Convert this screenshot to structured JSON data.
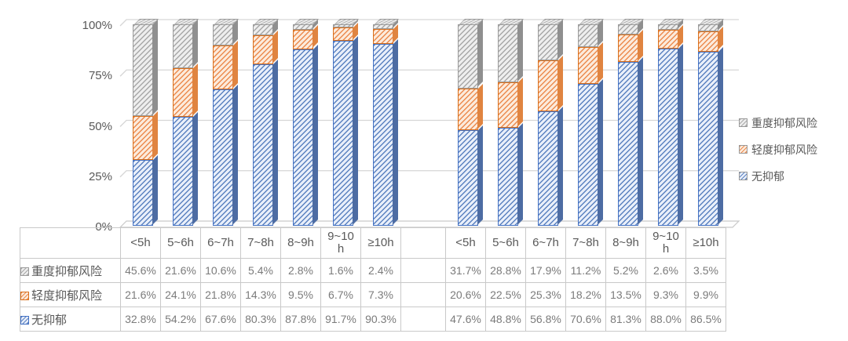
{
  "chart_data": {
    "type": "bar",
    "variant": "100-percent-stacked-3d-column",
    "title": "",
    "xlabel": "",
    "ylabel": "",
    "ylim": [
      0,
      100
    ],
    "grid": true,
    "legend_position": "right",
    "y_ticks": [
      {
        "label": "0%",
        "value": 0
      },
      {
        "label": "25%",
        "value": 25
      },
      {
        "label": "50%",
        "value": 50
      },
      {
        "label": "75%",
        "value": 75
      },
      {
        "label": "100%",
        "value": 100
      }
    ],
    "categories": [
      "<5h",
      "5~6h",
      "6~7h",
      "7~8h",
      "8~9h",
      "9~10\nh",
      "≥10h",
      "",
      "<5h",
      "5~6h",
      "6~7h",
      "7~8h",
      "8~9h",
      "9~10\nh",
      "≥10h"
    ],
    "series": [
      {
        "name": "重度抑郁风险",
        "stack_order": "top",
        "stripe": "#a8a8a8",
        "bg": "#eeeeee",
        "side": "#8f8f8f",
        "border": "#9b9b9b",
        "values": [
          45.6,
          21.6,
          10.6,
          5.4,
          2.8,
          1.6,
          2.4,
          null,
          31.7,
          28.8,
          17.9,
          11.2,
          5.2,
          2.6,
          3.5
        ]
      },
      {
        "name": "轻度抑郁风险",
        "stack_order": "middle",
        "stripe": "#ec8b4f",
        "bg": "#fcebdc",
        "side": "#e08440",
        "border": "#d9701c",
        "values": [
          21.6,
          24.1,
          21.8,
          14.3,
          9.5,
          6.7,
          7.3,
          null,
          20.6,
          22.5,
          25.3,
          18.2,
          13.5,
          9.3,
          9.9
        ]
      },
      {
        "name": "无抑郁",
        "stack_order": "bottom",
        "stripe": "#5b82c0",
        "bg": "#e9effa",
        "side": "#4d6ca3",
        "border": "#4472c4",
        "values": [
          32.8,
          54.2,
          67.6,
          80.3,
          87.8,
          91.7,
          90.3,
          null,
          47.6,
          48.8,
          56.8,
          70.6,
          81.3,
          88.0,
          86.5
        ]
      }
    ],
    "value_suffix": "%"
  },
  "legend": {
    "items": [
      {
        "label": "重度抑郁风险"
      },
      {
        "label": "轻度抑郁风险"
      },
      {
        "label": "无抑郁"
      }
    ]
  },
  "colors": {
    "axis_text": "#595959",
    "table_value_text": "#7b7b7b",
    "gridline": "#d6d6d6",
    "table_border": "#c9c9c9"
  }
}
